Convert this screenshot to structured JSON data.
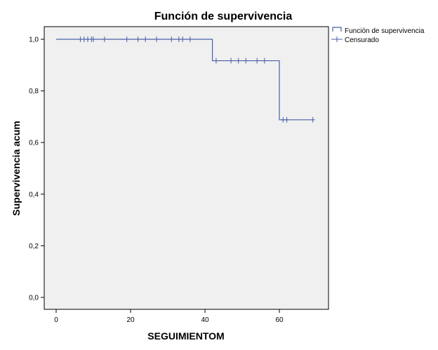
{
  "chart_data": {
    "type": "line",
    "title": "Función de supervivencia",
    "xlabel": "SEGUIMIENTOM",
    "ylabel": "Supervivencia acum",
    "xlim": [
      0,
      75
    ],
    "ylim": [
      0,
      1.05
    ],
    "x_ticks": [
      0,
      20,
      40,
      60
    ],
    "x_tick_labels": [
      "0",
      "20",
      "40",
      "60"
    ],
    "y_ticks": [
      0,
      0.2,
      0.4,
      0.6,
      0.8,
      1.0
    ],
    "y_tick_labels": [
      "0,0",
      "0,2",
      "0,4",
      "0,6",
      "0,8",
      "1,0"
    ],
    "grid": false,
    "plot_background": "#f0f0f0",
    "line_color": "#4a5fa8",
    "legend_position": "top-right (outside plot)",
    "series": [
      {
        "name": "Función de supervivencia",
        "kind": "step",
        "x": [
          0,
          42,
          60,
          69
        ],
        "y": [
          1.0,
          0.917,
          0.688,
          0.688
        ]
      },
      {
        "name": "Censurado",
        "kind": "censor-marks",
        "x": [
          6.5,
          7.5,
          8.5,
          9.5,
          10,
          13,
          19,
          22,
          24,
          27,
          31,
          33,
          34,
          36,
          43,
          47,
          49,
          51,
          54,
          56,
          61,
          62,
          69
        ],
        "y": [
          1.0,
          1.0,
          1.0,
          1.0,
          1.0,
          1.0,
          1.0,
          1.0,
          1.0,
          1.0,
          1.0,
          1.0,
          1.0,
          1.0,
          0.917,
          0.917,
          0.917,
          0.917,
          0.917,
          0.917,
          0.688,
          0.688,
          0.688
        ]
      }
    ]
  }
}
